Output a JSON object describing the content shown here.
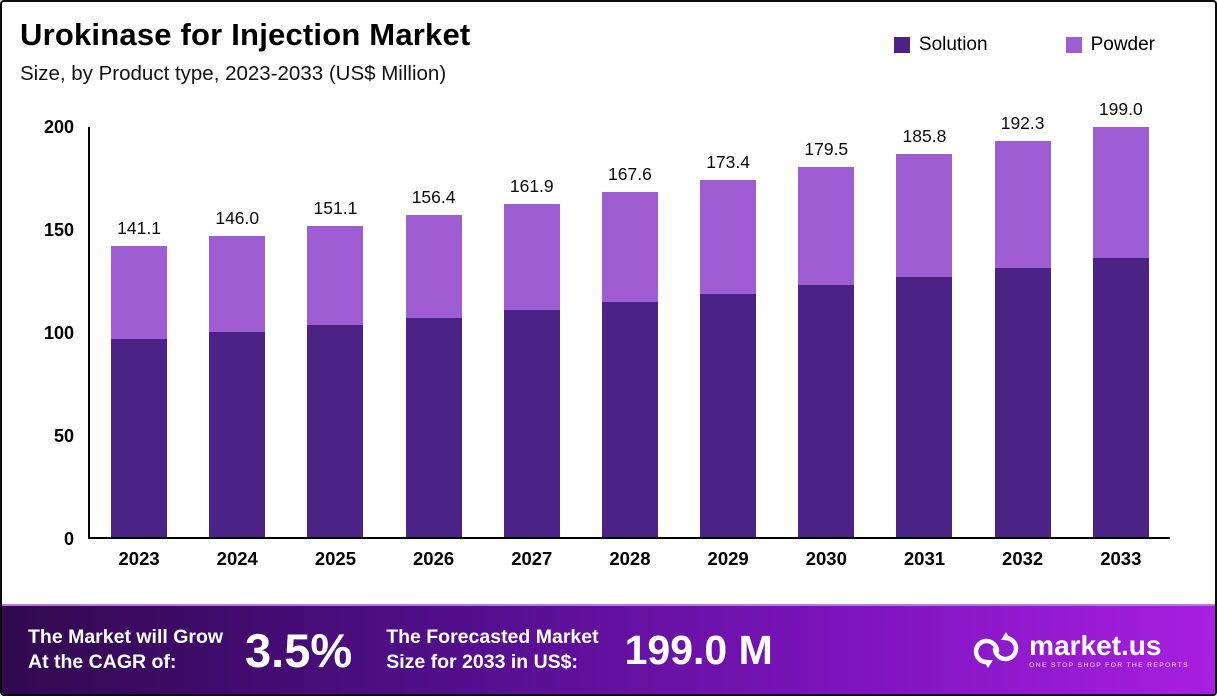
{
  "header": {
    "title": "Urokinase for Injection Market",
    "subtitle": "Size, by Product type, 2023-2033 (US$ Million)"
  },
  "legend": [
    {
      "label": "Solution",
      "color": "#4b2386"
    },
    {
      "label": "Powder",
      "color": "#9e5dd3"
    }
  ],
  "chart_data": {
    "type": "bar",
    "stacked": true,
    "title": "Urokinase for Injection Market Size, by Product type, 2023-2033 (US$ Million)",
    "categories": [
      "2023",
      "2024",
      "2025",
      "2026",
      "2027",
      "2028",
      "2029",
      "2030",
      "2031",
      "2032",
      "2033"
    ],
    "series": [
      {
        "name": "Solution",
        "color": "#4b2386",
        "values": [
          95.9,
          99.3,
          102.7,
          106.4,
          110.1,
          114.0,
          117.9,
          122.1,
          126.3,
          130.8,
          135.3
        ]
      },
      {
        "name": "Powder",
        "color": "#9e5dd3",
        "values": [
          45.2,
          46.7,
          48.4,
          50.0,
          51.8,
          53.6,
          55.5,
          57.4,
          59.5,
          61.5,
          63.7
        ]
      }
    ],
    "totals": [
      141.1,
      146.0,
      151.1,
      156.4,
      161.9,
      167.6,
      173.4,
      179.5,
      185.8,
      192.3,
      199.0
    ],
    "xlabel": "",
    "ylabel": "",
    "ylim": [
      0,
      200
    ],
    "yticks": [
      0,
      50,
      100,
      150,
      200
    ],
    "grid": false,
    "legend_position": "top-right"
  },
  "banner": {
    "cagr_label_line1": "The Market will Grow",
    "cagr_label_line2": "At the CAGR of:",
    "cagr_value": "3.5%",
    "forecast_label_line1": "The Forecasted Market",
    "forecast_label_line2": "Size for 2033 in US$:",
    "forecast_value": "199.0 M",
    "brand_name": "market.us",
    "brand_tagline": "One Stop Shop For The Reports"
  }
}
